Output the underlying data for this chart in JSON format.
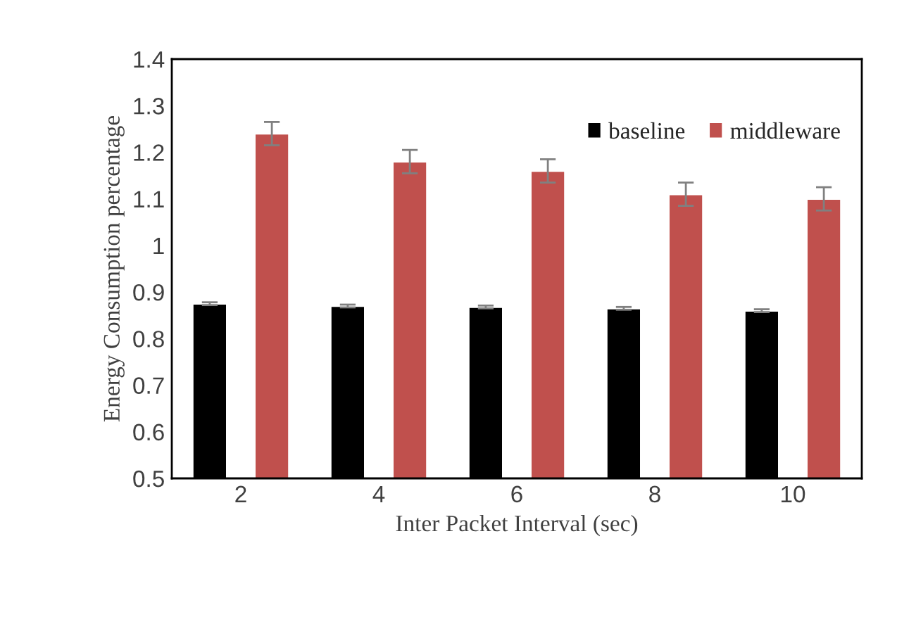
{
  "chart_data": {
    "type": "bar",
    "xlabel": "Inter Packet Interval (sec)",
    "ylabel": "Energy Consumption percentage",
    "categories": [
      "2",
      "4",
      "6",
      "8",
      "10"
    ],
    "series": [
      {
        "name": "baseline",
        "color": "#000000",
        "values": [
          0.875,
          0.87,
          0.868,
          0.865,
          0.86
        ],
        "errors": [
          0.003,
          0.003,
          0.003,
          0.003,
          0.003
        ]
      },
      {
        "name": "middleware",
        "color": "#c0504d",
        "values": [
          1.24,
          1.18,
          1.16,
          1.11,
          1.1
        ],
        "errors": [
          0.025,
          0.025,
          0.025,
          0.025,
          0.025
        ]
      }
    ],
    "ylim": [
      0.5,
      1.4
    ],
    "yticks": [
      0.5,
      0.6,
      0.7,
      0.8,
      0.9,
      1,
      1.1,
      1.2,
      1.3,
      1.4
    ],
    "grid": false,
    "legend": "top right"
  }
}
